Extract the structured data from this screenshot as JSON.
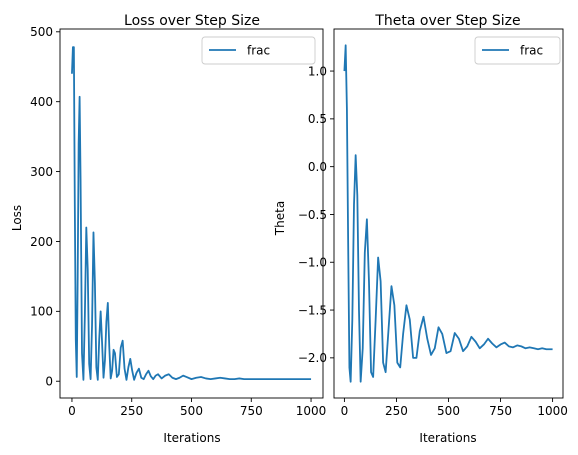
{
  "chart_data": [
    {
      "type": "line",
      "title": "Loss over Step Size",
      "xlabel": "Iterations",
      "ylabel": "Loss",
      "xlim": [
        -50,
        1050
      ],
      "ylim": [
        -24,
        504
      ],
      "xticks": [
        0,
        250,
        500,
        750,
        1000
      ],
      "yticks": [
        0,
        100,
        200,
        300,
        400,
        500
      ],
      "legend": "top-right",
      "grid": false,
      "color": "#1f77b4",
      "series": [
        {
          "name": "frac",
          "x": [
            0,
            4,
            8,
            12,
            16,
            20,
            24,
            28,
            32,
            36,
            42,
            48,
            54,
            60,
            66,
            72,
            78,
            84,
            90,
            96,
            102,
            108,
            114,
            120,
            126,
            132,
            138,
            144,
            150,
            156,
            162,
            168,
            174,
            180,
            188,
            196,
            204,
            212,
            220,
            228,
            236,
            244,
            252,
            260,
            270,
            280,
            290,
            300,
            310,
            320,
            330,
            340,
            350,
            360,
            375,
            390,
            405,
            420,
            435,
            450,
            465,
            480,
            500,
            520,
            540,
            560,
            580,
            600,
            620,
            640,
            660,
            680,
            700,
            720,
            740,
            760,
            780,
            800,
            820,
            840,
            860,
            880,
            900,
            920,
            940,
            960,
            980,
            1000
          ],
          "y": [
            440,
            478,
            478,
            250,
            60,
            6,
            150,
            340,
            407,
            290,
            40,
            2,
            95,
            220,
            160,
            25,
            3,
            80,
            213,
            140,
            20,
            2,
            60,
            100,
            55,
            5,
            30,
            85,
            112,
            50,
            4,
            15,
            45,
            40,
            6,
            10,
            48,
            58,
            18,
            2,
            20,
            32,
            15,
            2,
            12,
            18,
            5,
            3,
            10,
            15,
            7,
            3,
            8,
            10,
            4,
            8,
            10,
            5,
            3,
            5,
            8,
            6,
            3,
            5,
            6,
            4,
            3,
            4,
            5,
            4,
            3,
            3,
            4,
            3,
            3,
            3,
            3,
            3,
            3,
            3,
            3,
            3,
            3,
            3,
            3,
            3,
            3,
            3
          ]
        }
      ]
    },
    {
      "type": "line",
      "title": "Theta over Step Size",
      "xlabel": "Iterations",
      "ylabel": "Theta",
      "xlim": [
        -50,
        1050
      ],
      "ylim": [
        -2.42,
        1.44
      ],
      "xticks": [
        0,
        250,
        500,
        750,
        1000
      ],
      "yticks": [
        1.0,
        0.5,
        0.0,
        -0.5,
        -1.0,
        -1.5,
        -2.0
      ],
      "ytick_labels": [
        "1.0",
        "0.5",
        "0.0",
        "−0.5",
        "−1.0",
        "−1.5",
        "−2.0"
      ],
      "legend": "top-right",
      "grid": false,
      "color": "#1f77b4",
      "series": [
        {
          "name": "frac",
          "x": [
            0,
            6,
            12,
            18,
            24,
            30,
            38,
            46,
            54,
            62,
            70,
            78,
            88,
            98,
            108,
            118,
            128,
            138,
            150,
            162,
            174,
            186,
            198,
            212,
            226,
            240,
            254,
            268,
            282,
            298,
            314,
            330,
            346,
            362,
            380,
            398,
            416,
            434,
            452,
            470,
            490,
            510,
            530,
            550,
            570,
            590,
            610,
            630,
            650,
            670,
            690,
            710,
            730,
            750,
            770,
            790,
            810,
            830,
            850,
            870,
            890,
            910,
            930,
            950,
            970,
            990,
            1000
          ],
          "y": [
            1.0,
            1.27,
            0.6,
            -0.8,
            -2.1,
            -2.25,
            -1.6,
            -0.4,
            0.12,
            -0.3,
            -1.5,
            -2.25,
            -1.9,
            -0.9,
            -0.55,
            -1.2,
            -2.15,
            -2.2,
            -1.6,
            -0.95,
            -1.2,
            -2.05,
            -2.15,
            -1.7,
            -1.25,
            -1.45,
            -2.05,
            -2.1,
            -1.75,
            -1.45,
            -1.6,
            -2.0,
            -2.0,
            -1.72,
            -1.57,
            -1.8,
            -1.97,
            -1.9,
            -1.68,
            -1.75,
            -1.95,
            -1.93,
            -1.74,
            -1.8,
            -1.93,
            -1.88,
            -1.78,
            -1.83,
            -1.9,
            -1.86,
            -1.8,
            -1.85,
            -1.89,
            -1.86,
            -1.84,
            -1.88,
            -1.89,
            -1.87,
            -1.88,
            -1.9,
            -1.89,
            -1.9,
            -1.91,
            -1.9,
            -1.91,
            -1.91,
            -1.91
          ]
        }
      ]
    }
  ]
}
